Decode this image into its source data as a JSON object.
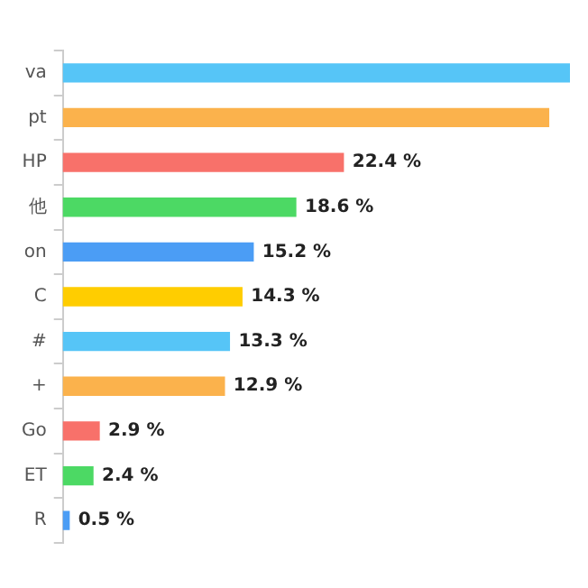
{
  "chart_data": {
    "type": "bar",
    "orientation": "horizontal",
    "categories": [
      "va",
      "pt",
      "HP",
      "他",
      "on",
      "C",
      "#",
      "+",
      "Go",
      "ET",
      "R"
    ],
    "values": [
      40.5,
      38.8,
      22.4,
      18.6,
      15.2,
      14.3,
      13.3,
      12.9,
      2.9,
      2.4,
      0.5
    ],
    "colors": [
      "#56c5f7",
      "#fbb24c",
      "#f8716a",
      "#4cd964",
      "#4b9df5",
      "#ffcd00",
      "#56c5f7",
      "#fbb24c",
      "#f8716a",
      "#4cd964",
      "#4b9df5"
    ],
    "value_labels": [
      null,
      null,
      "22.4 %",
      "18.6 %",
      "15.2 %",
      "14.3 %",
      "13.3 %",
      "12.9 %",
      "2.9 %",
      "2.4 %",
      "0.5 %"
    ],
    "grid": false,
    "legend": false
  }
}
